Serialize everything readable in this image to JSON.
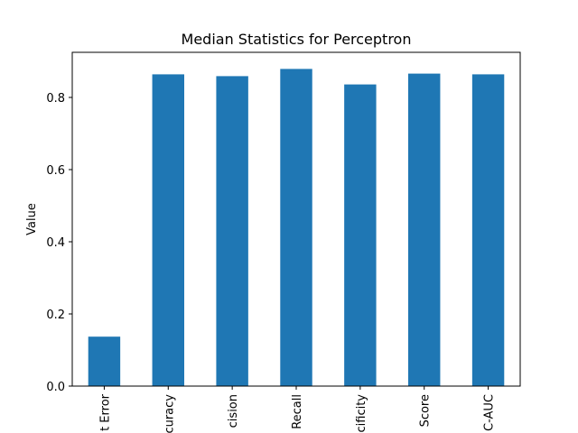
{
  "chart_data": {
    "type": "bar",
    "title": "Median Statistics for Perceptron",
    "xlabel": "",
    "ylabel": "Value",
    "categories": [
      "t Error",
      "curacy",
      "cision",
      "Recall",
      "ecificity",
      "Score",
      "C-AUC"
    ],
    "values": [
      0.137,
      0.864,
      0.859,
      0.879,
      0.836,
      0.866,
      0.864
    ],
    "ylim": [
      0,
      0.925
    ],
    "yticks": [
      0.0,
      0.2,
      0.4,
      0.6,
      0.8
    ],
    "ytick_labels": [
      "0.0",
      "0.2",
      "0.4",
      "0.6",
      "0.8"
    ],
    "bar_color": "#1f77b4",
    "grid": false,
    "legend": "none"
  }
}
